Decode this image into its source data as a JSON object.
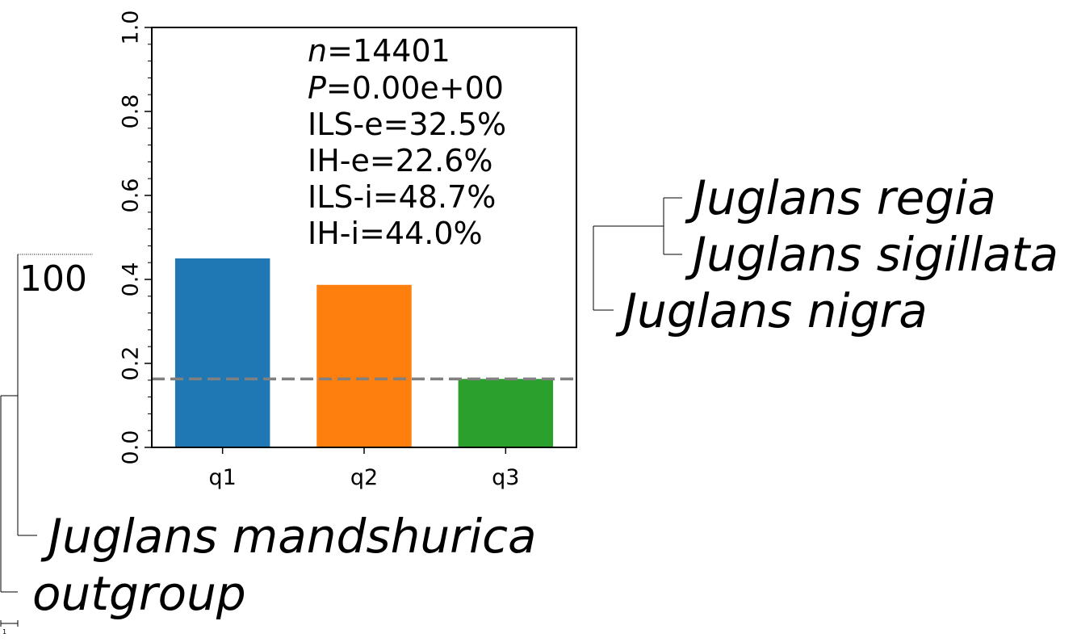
{
  "chart_data": {
    "type": "bar",
    "title": "",
    "xlabel": "",
    "ylabel": "",
    "categories": [
      "q1",
      "q2",
      "q3"
    ],
    "values": [
      0.45,
      0.387,
      0.163
    ],
    "colors": [
      "#1f77b4",
      "#ff7f0e",
      "#2ca02c"
    ],
    "ylim": [
      0,
      1.0
    ],
    "yticks": [
      "0.0",
      "0.2",
      "0.4",
      "0.6",
      "0.8",
      "1.0"
    ],
    "reference_line": {
      "value": 0.163,
      "style": "dashed",
      "color": "#808080"
    },
    "annotations": {
      "n": {
        "label": "n",
        "value": "=14401"
      },
      "p": {
        "label": "P",
        "value": "=0.00e+00"
      },
      "ils_e": "ILS-e=32.5%",
      "ih_e": "IH-e=22.6%",
      "ils_i": "ILS-i=48.7%",
      "ih_i": "IH-i=44.0%"
    },
    "grid": false,
    "legend": "none"
  },
  "tree": {
    "taxa": {
      "regia": "Juglans regia",
      "sigillata": "Juglans sigillata",
      "nigra": "Juglans nigra",
      "mandshurica": "Juglans mandshurica",
      "outgroup": "outgroup"
    },
    "support": "100",
    "scale_label": "1"
  }
}
